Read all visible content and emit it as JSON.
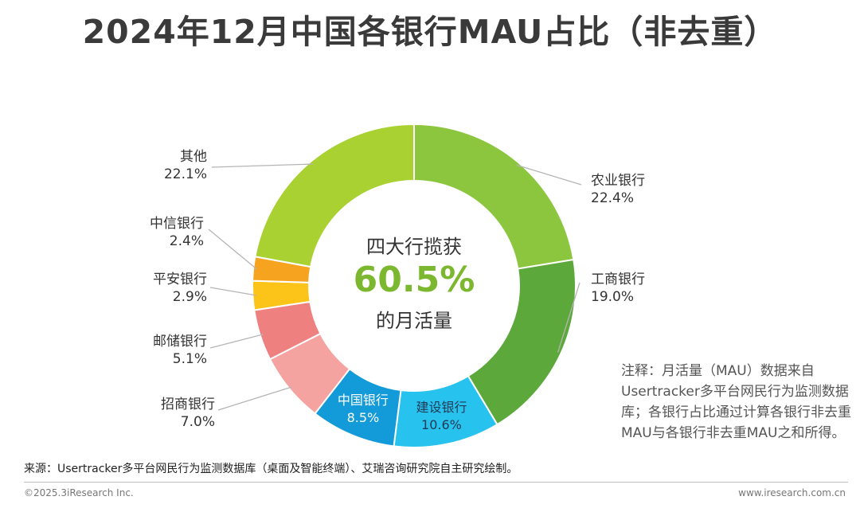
{
  "title": "2024年12月中国各银行MAU占比（非去重）",
  "center": {
    "line1": "四大行揽获",
    "value": "60.5%",
    "line2": "的月活量",
    "value_color": "#7cb82f"
  },
  "note": "注释：月活量（MAU）数据来自Usertracker多平台网民行为监测数据库；各银行占比通过计算各银行非去重MAU与各银行非去重MAU之和所得。",
  "source": "来源：Usertracker多平台网民行为监测数据库（桌面及智能终端）、艾瑞咨询研究院自主研究绘制。",
  "copyright": "©2025.3iResearch Inc.",
  "website": "www.iresearch.com.cn",
  "chart_data": {
    "type": "pie",
    "variant": "donut",
    "title": "2024年12月中国各银行MAU占比（非去重）",
    "unit": "%",
    "start": "12 o'clock, clockwise",
    "slices": [
      {
        "name": "农业银行",
        "value": 22.4,
        "label": "22.4%",
        "color": "#8cc63f"
      },
      {
        "name": "工商银行",
        "value": 19.0,
        "label": "19.0%",
        "color": "#5da83b"
      },
      {
        "name": "建设银行",
        "value": 10.6,
        "label": "10.6%",
        "color": "#27c3ee"
      },
      {
        "name": "中国银行",
        "value": 8.5,
        "label": "8.5%",
        "color": "#139ad8"
      },
      {
        "name": "招商银行",
        "value": 7.0,
        "label": "7.0%",
        "color": "#f4a3a1"
      },
      {
        "name": "邮储银行",
        "value": 5.1,
        "label": "5.1%",
        "color": "#ef8080"
      },
      {
        "name": "平安银行",
        "value": 2.9,
        "label": "2.9%",
        "color": "#fcc419"
      },
      {
        "name": "中信银行",
        "value": 2.4,
        "label": "2.4%",
        "color": "#f6a41f"
      },
      {
        "name": "其他",
        "value": 22.1,
        "label": "22.1%",
        "color": "#a9d132"
      }
    ]
  }
}
